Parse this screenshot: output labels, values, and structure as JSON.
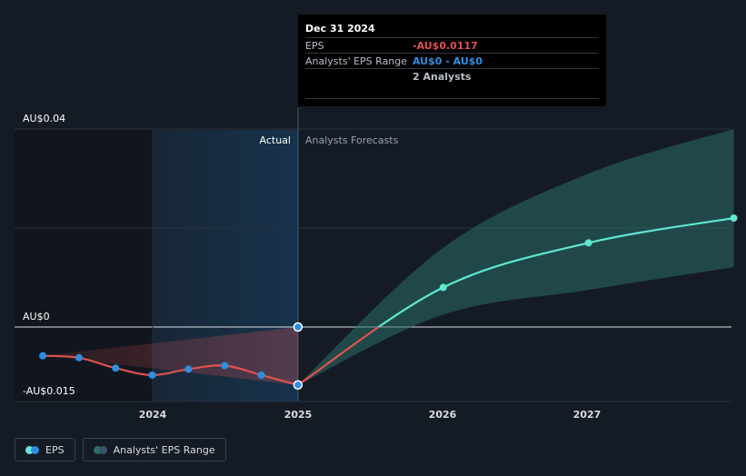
{
  "chart_data": {
    "type": "line",
    "x_tick_labels": [
      "2024",
      "2025",
      "2026",
      "2027"
    ],
    "y_tick_labels": [
      "AU$0.04",
      "AU$0",
      "-AU$0.015"
    ],
    "ylim": [
      -0.015,
      0.04
    ],
    "actual_label": "Actual",
    "forecast_label": "Analysts Forecasts",
    "series": [
      {
        "name": "EPS",
        "color": "#e05151",
        "points": [
          {
            "x": "2023-03-31",
            "y": -0.0058
          },
          {
            "x": "2023-06-30",
            "y": -0.0062
          },
          {
            "x": "2023-09-30",
            "y": -0.0083
          },
          {
            "x": "2023-12-31",
            "y": -0.0097
          },
          {
            "x": "2024-03-31",
            "y": -0.0085
          },
          {
            "x": "2024-06-30",
            "y": -0.0078
          },
          {
            "x": "2024-09-30",
            "y": -0.0097
          },
          {
            "x": "2024-12-31",
            "y": -0.0117
          }
        ]
      },
      {
        "name": "EPS Forecast",
        "color": "#5ee8d4",
        "points": [
          {
            "x": "2024-12-31",
            "y": -0.0117
          },
          {
            "x": "2025-12-31",
            "y": 0.008
          },
          {
            "x": "2026-12-31",
            "y": 0.017
          },
          {
            "x": "2027-12-31",
            "y": 0.022
          }
        ]
      }
    ],
    "range": {
      "name": "Analysts' EPS Range",
      "color": "#2c6e66",
      "upper": [
        {
          "x": "2024-12-31",
          "y": -0.0117
        },
        {
          "x": "2025-12-31",
          "y": 0.016
        },
        {
          "x": "2026-12-31",
          "y": 0.031
        },
        {
          "x": "2027-12-31",
          "y": 0.04
        }
      ],
      "lower": [
        {
          "x": "2024-12-31",
          "y": -0.0117
        },
        {
          "x": "2025-12-31",
          "y": 0.0025
        },
        {
          "x": "2026-12-31",
          "y": 0.0075
        },
        {
          "x": "2027-12-31",
          "y": 0.0121
        }
      ]
    },
    "past_range": {
      "upper": [
        {
          "x": "2023-03-31",
          "y": -0.0058
        },
        {
          "x": "2024-12-31",
          "y": 0.0
        }
      ],
      "lower": [
        {
          "x": "2023-03-31",
          "y": -0.0058
        },
        {
          "x": "2024-12-31",
          "y": -0.0117
        }
      ]
    },
    "highlight_point": {
      "x": "2024-12-31",
      "y": 0.0
    },
    "grid": true
  },
  "tooltip": {
    "date": "Dec 31 2024",
    "eps_label": "EPS",
    "eps_value": "-AU$0.0117",
    "range_label": "Analysts' EPS Range",
    "range_value": "AU$0 - AU$0",
    "analysts": "2 Analysts"
  },
  "legend": {
    "eps_label": "EPS",
    "range_label": "Analysts' EPS Range"
  },
  "colors": {
    "eps_past": "#e05151",
    "eps_future": "#5ee8d4",
    "point": "#2d8fe0",
    "tooltip_negative": "#e05151",
    "tooltip_range": "#2d8fe0"
  }
}
